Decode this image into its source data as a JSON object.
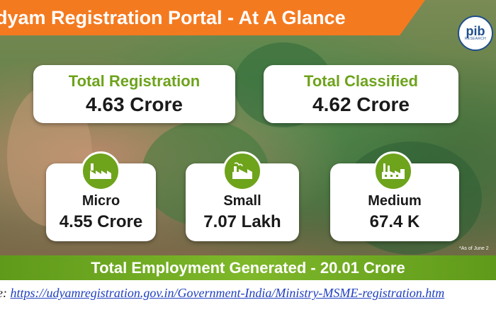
{
  "infographic": {
    "title": "dyam Registration Portal - At A Glance",
    "logo": {
      "text": "pib",
      "subtext": "RESEARCH"
    },
    "top_cards": [
      {
        "label": "Total Registration",
        "value": "4.63 Crore"
      },
      {
        "label": "Total Classified",
        "value": "4.62 Crore"
      }
    ],
    "category_cards": [
      {
        "label": "Micro",
        "value": "4.55 Crore",
        "icon": "factory-icon"
      },
      {
        "label": "Small",
        "value": "7.07 Lakh",
        "icon": "small-factory-icon"
      },
      {
        "label": "Medium",
        "value": "67.4 K",
        "icon": "large-factory-icon"
      }
    ],
    "as_of": "*As of June 2",
    "employment": "Total Employment Generated - 20.01 Crore",
    "colors": {
      "orange": "#f47a20",
      "green": "#6ea31c",
      "blue": "#1f4e8c"
    }
  },
  "source": {
    "prefix": "ce: ",
    "link": "https://udyamregistration.gov.in/Government-India/Ministry-MSME-registration.htm"
  }
}
